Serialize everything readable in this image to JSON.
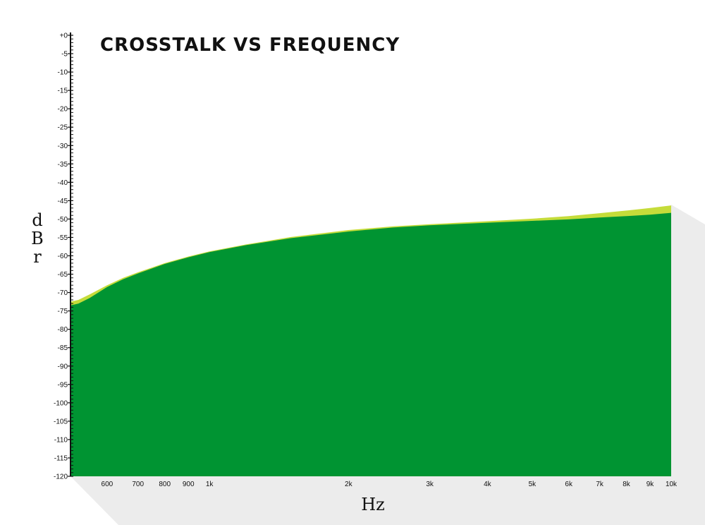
{
  "chart_data": {
    "type": "area",
    "title": "CROSSTALK VS FREQUENCY",
    "xlabel": "Hz",
    "ylabel": "dBr",
    "x_scale": "log",
    "xlim": [
      500,
      10000
    ],
    "ylim": [
      -120,
      0
    ],
    "x_ticks": [
      {
        "value": 600,
        "label": "600"
      },
      {
        "value": 700,
        "label": "700"
      },
      {
        "value": 800,
        "label": "800"
      },
      {
        "value": 900,
        "label": "900"
      },
      {
        "value": 1000,
        "label": "1k"
      },
      {
        "value": 2000,
        "label": "2k"
      },
      {
        "value": 3000,
        "label": "3k"
      },
      {
        "value": 4000,
        "label": "4k"
      },
      {
        "value": 5000,
        "label": "5k"
      },
      {
        "value": 6000,
        "label": "6k"
      },
      {
        "value": 7000,
        "label": "7k"
      },
      {
        "value": 8000,
        "label": "8k"
      },
      {
        "value": 9000,
        "label": "9k"
      },
      {
        "value": 10000,
        "label": "10k"
      }
    ],
    "y_ticks": [
      {
        "value": 0,
        "label": "+0"
      },
      {
        "value": -5,
        "label": "-5"
      },
      {
        "value": -10,
        "label": "-10"
      },
      {
        "value": -15,
        "label": "-15"
      },
      {
        "value": -20,
        "label": "-20"
      },
      {
        "value": -25,
        "label": "-25"
      },
      {
        "value": -30,
        "label": "-30"
      },
      {
        "value": -35,
        "label": "-35"
      },
      {
        "value": -40,
        "label": "-40"
      },
      {
        "value": -45,
        "label": "-45"
      },
      {
        "value": -50,
        "label": "-50"
      },
      {
        "value": -55,
        "label": "-55"
      },
      {
        "value": -60,
        "label": "-60"
      },
      {
        "value": -65,
        "label": "-65"
      },
      {
        "value": -70,
        "label": "-70"
      },
      {
        "value": -75,
        "label": "-75"
      },
      {
        "value": -80,
        "label": "-80"
      },
      {
        "value": -85,
        "label": "-85"
      },
      {
        "value": -90,
        "label": "-90"
      },
      {
        "value": -95,
        "label": "-95"
      },
      {
        "value": -100,
        "label": "-100"
      },
      {
        "value": -105,
        "label": "-105"
      },
      {
        "value": -110,
        "label": "-110"
      },
      {
        "value": -115,
        "label": "-115"
      },
      {
        "value": -120,
        "label": "-120"
      }
    ],
    "series": [
      {
        "color": "#c5dc3a",
        "x": [
          500,
          520,
          550,
          600,
          650,
          700,
          800,
          900,
          1000,
          1200,
          1500,
          2000,
          2500,
          3000,
          4000,
          5000,
          6000,
          7000,
          8000,
          9000,
          10000
        ],
        "y": [
          -72.5,
          -72.0,
          -70.5,
          -68.0,
          -66.0,
          -64.5,
          -62.0,
          -60.2,
          -58.8,
          -56.9,
          -54.9,
          -53.0,
          -52.0,
          -51.4,
          -50.6,
          -49.9,
          -49.2,
          -48.4,
          -47.7,
          -47.0,
          -46.3
        ]
      },
      {
        "color": "#009432",
        "x": [
          500,
          520,
          550,
          600,
          650,
          700,
          800,
          900,
          1000,
          1200,
          1500,
          2000,
          2500,
          3000,
          4000,
          5000,
          6000,
          7000,
          8000,
          9000,
          10000
        ],
        "y": [
          -73.5,
          -73.0,
          -71.5,
          -68.5,
          -66.4,
          -64.8,
          -62.2,
          -60.4,
          -59.0,
          -57.1,
          -55.2,
          -53.4,
          -52.3,
          -51.7,
          -51.0,
          -50.5,
          -50.1,
          -49.6,
          -49.2,
          -48.8,
          -48.3
        ]
      }
    ]
  }
}
